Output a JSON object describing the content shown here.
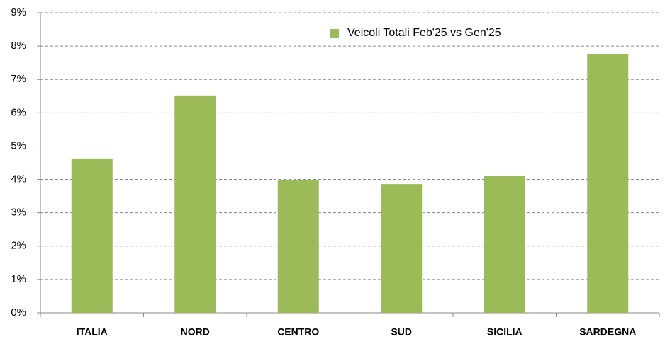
{
  "chart_data": {
    "type": "bar",
    "categories": [
      "ITALIA",
      "NORD",
      "CENTRO",
      "SUD",
      "SICILIA",
      "SARDEGNA"
    ],
    "series": [
      {
        "name": "Veicoli Totali Feb'25 vs Gen'25",
        "color": "#9bbb59",
        "values": [
          4.63,
          6.52,
          3.97,
          3.86,
          4.1,
          7.77
        ]
      }
    ],
    "ylim": [
      0,
      9
    ],
    "yticks": [
      {
        "value": 0,
        "label": "0%"
      },
      {
        "value": 1,
        "label": "1%"
      },
      {
        "value": 2,
        "label": "2%"
      },
      {
        "value": 3,
        "label": "3%"
      },
      {
        "value": 4,
        "label": "4%"
      },
      {
        "value": 5,
        "label": "5%"
      },
      {
        "value": 6,
        "label": "6%"
      },
      {
        "value": 7,
        "label": "7%"
      },
      {
        "value": 8,
        "label": "8%"
      },
      {
        "value": 9,
        "label": "9%"
      }
    ],
    "grid": true,
    "legend": "top"
  }
}
